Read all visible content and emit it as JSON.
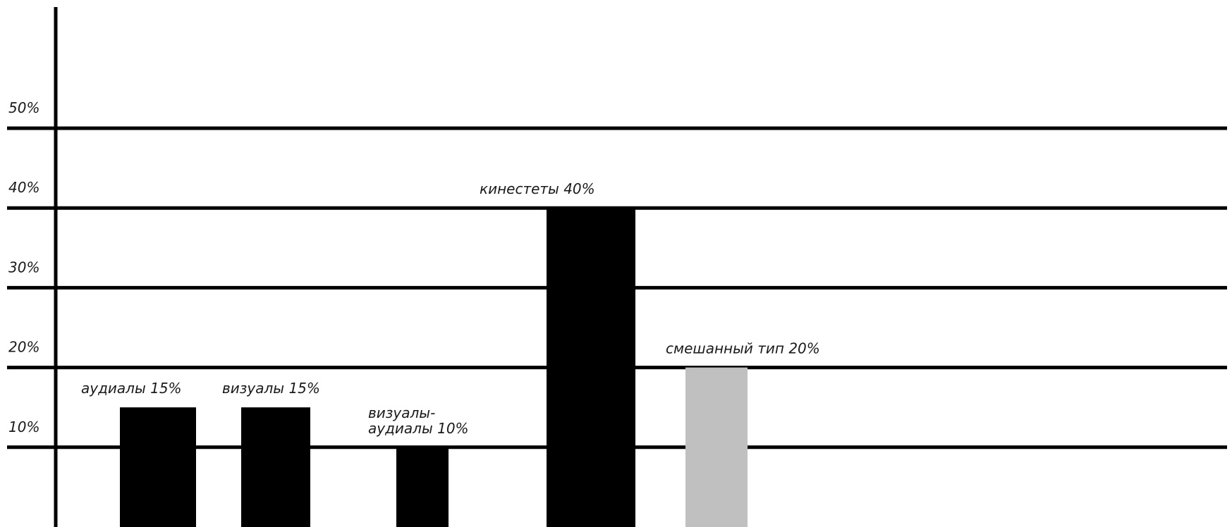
{
  "chart_data": {
    "type": "bar",
    "y_ticks": [
      "10%",
      "20%",
      "30%",
      "40%",
      "50%"
    ],
    "y_tick_values": [
      10,
      20,
      30,
      40,
      50
    ],
    "ylim": [
      0,
      50
    ],
    "grid": true,
    "legend": "none",
    "series": [
      {
        "values": [
          15,
          15,
          10,
          40,
          20
        ],
        "labels": [
          [
            "аудиалы 15%"
          ],
          [
            "визуалы 15%"
          ],
          [
            "визуалы-",
            "аудиалы 10%"
          ],
          [
            "кинестеты 40%"
          ],
          [
            "смешанный тип 20%"
          ]
        ],
        "colors": [
          "#000000",
          "#000000",
          "#000000",
          "#000000",
          "#c0c0c0"
        ]
      }
    ],
    "colors": {
      "axis": "#000000",
      "grid": "#000000",
      "text": "#1a1a1a"
    }
  }
}
